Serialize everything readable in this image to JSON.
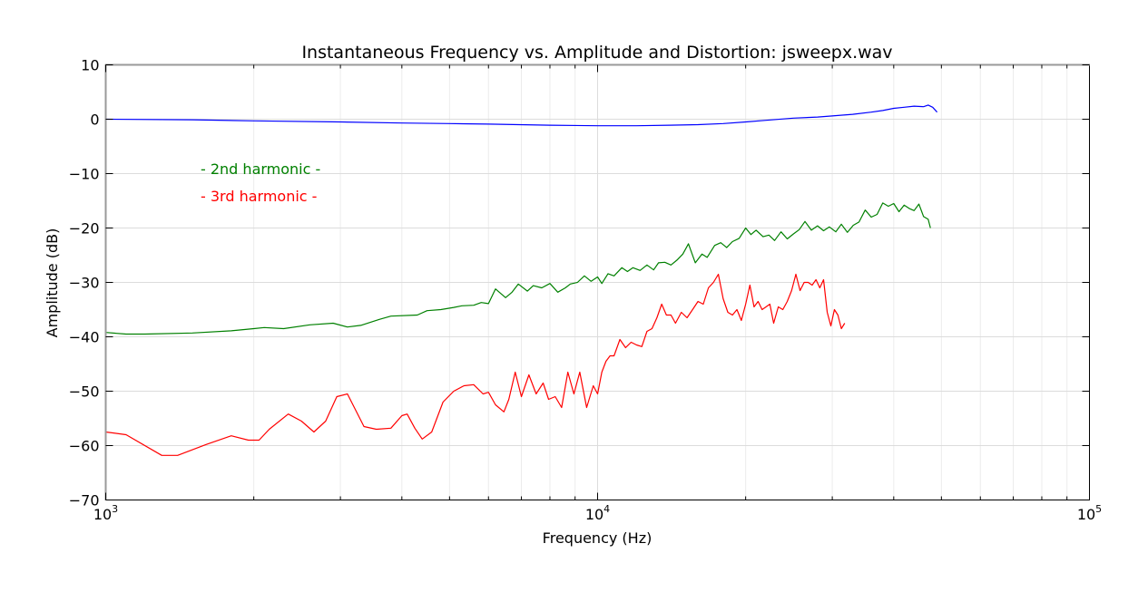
{
  "chart_data": {
    "type": "line",
    "title": "Instantaneous Frequency vs. Amplitude and Distortion: jsweepx.wav",
    "xlabel": "Frequency (Hz)",
    "ylabel": "Amplitude (dB)",
    "xscale": "log",
    "xlim": [
      1000,
      100000
    ],
    "ylim": [
      -70,
      10
    ],
    "grid": true,
    "x_ticks": [
      {
        "base": "10",
        "exp": "3",
        "value": 1000
      },
      {
        "base": "10",
        "exp": "4",
        "value": 10000
      },
      {
        "base": "10",
        "exp": "5",
        "value": 100000
      }
    ],
    "y_ticks": [
      {
        "label": "10",
        "value": 10
      },
      {
        "label": "0",
        "value": 0
      },
      {
        "label": "−10",
        "value": -10
      },
      {
        "label": "−20",
        "value": -20
      },
      {
        "label": "−30",
        "value": -30
      },
      {
        "label": "−40",
        "value": -40
      },
      {
        "label": "−50",
        "value": -50
      },
      {
        "label": "−60",
        "value": -60
      },
      {
        "label": "−70",
        "value": -70
      }
    ],
    "annotations": [
      {
        "text": "- 2nd harmonic -",
        "color": "#008000"
      },
      {
        "text": "- 3rd harmonic -",
        "color": "#ff0000"
      }
    ],
    "series": [
      {
        "color": "#0000ff",
        "x": [
          1000,
          1500,
          2000,
          3000,
          4000,
          5000,
          6000,
          8000,
          10000,
          12000,
          14000,
          16000,
          18000,
          20000,
          22000,
          25000,
          28000,
          30000,
          33000,
          36000,
          38000,
          40000,
          42000,
          44000,
          46000,
          47000,
          48000,
          49000
        ],
        "y": [
          0,
          -0.1,
          -0.3,
          -0.5,
          -0.7,
          -0.8,
          -0.9,
          -1.1,
          -1.2,
          -1.2,
          -1.1,
          -1.0,
          -0.8,
          -0.5,
          -0.2,
          0.2,
          0.4,
          0.6,
          0.9,
          1.3,
          1.6,
          2.0,
          2.2,
          2.4,
          2.3,
          2.6,
          2.2,
          1.3
        ]
      },
      {
        "color": "#008000",
        "x": [
          1000,
          1100,
          1200,
          1500,
          1800,
          2000,
          2100,
          2300,
          2600,
          2900,
          3100,
          3300,
          3600,
          3800,
          4300,
          4500,
          4800,
          5100,
          5300,
          5600,
          5800,
          6000,
          6200,
          6500,
          6700,
          6900,
          7200,
          7400,
          7700,
          8000,
          8300,
          8600,
          8800,
          9100,
          9400,
          9700,
          10000,
          10200,
          10500,
          10800,
          11200,
          11500,
          11800,
          12200,
          12600,
          13000,
          13300,
          13700,
          14100,
          14500,
          14900,
          15300,
          15800,
          16300,
          16700,
          17300,
          17800,
          18300,
          18800,
          19400,
          20000,
          20500,
          21000,
          21700,
          22300,
          22900,
          23600,
          24300,
          25000,
          25700,
          26400,
          27200,
          28000,
          28800,
          29600,
          30500,
          31300,
          32200,
          33100,
          34000,
          35000,
          36000,
          37000,
          38000,
          39000,
          40000,
          41000,
          42000,
          43000,
          44000,
          45000,
          46000,
          47000,
          47500
        ],
        "y": [
          -39.2,
          -39.5,
          -39.5,
          -39.3,
          -38.9,
          -38.5,
          -38.3,
          -38.5,
          -37.8,
          -37.5,
          -38.2,
          -37.9,
          -36.8,
          -36.2,
          -36.0,
          -35.2,
          -35.0,
          -34.6,
          -34.3,
          -34.2,
          -33.7,
          -33.9,
          -31.2,
          -32.8,
          -31.8,
          -30.3,
          -31.6,
          -30.6,
          -31.0,
          -30.2,
          -31.8,
          -31.0,
          -30.3,
          -30.0,
          -28.8,
          -29.8,
          -29.0,
          -30.2,
          -28.4,
          -28.8,
          -27.3,
          -28.0,
          -27.3,
          -27.8,
          -26.8,
          -27.7,
          -26.4,
          -26.3,
          -26.8,
          -25.9,
          -24.8,
          -22.9,
          -26.4,
          -24.8,
          -25.4,
          -23.2,
          -22.7,
          -23.6,
          -22.5,
          -21.9,
          -20.0,
          -21.2,
          -20.4,
          -21.6,
          -21.3,
          -22.3,
          -20.7,
          -22.0,
          -21.1,
          -20.3,
          -18.8,
          -20.4,
          -19.6,
          -20.5,
          -19.8,
          -20.7,
          -19.3,
          -20.8,
          -19.5,
          -18.9,
          -16.7,
          -18.0,
          -17.5,
          -15.4,
          -16.0,
          -15.5,
          -17.0,
          -15.8,
          -16.4,
          -16.8,
          -15.6,
          -17.9,
          -18.4,
          -20.0
        ]
      },
      {
        "color": "#ff0000",
        "x": [
          1000,
          1100,
          1300,
          1400,
          1600,
          1800,
          1950,
          2050,
          2150,
          2350,
          2500,
          2650,
          2800,
          2950,
          3100,
          3350,
          3550,
          3800,
          4000,
          4100,
          4250,
          4400,
          4600,
          4850,
          5100,
          5350,
          5600,
          5850,
          6000,
          6200,
          6450,
          6600,
          6800,
          7000,
          7250,
          7500,
          7750,
          7950,
          8200,
          8450,
          8700,
          8950,
          9200,
          9500,
          9800,
          10000,
          10200,
          10400,
          10600,
          10800,
          11100,
          11400,
          11700,
          12000,
          12300,
          12600,
          12900,
          13200,
          13500,
          13800,
          14100,
          14400,
          14800,
          15200,
          15600,
          16000,
          16400,
          16800,
          17200,
          17600,
          18000,
          18400,
          18800,
          19200,
          19600,
          20000,
          20400,
          20800,
          21200,
          21600,
          22000,
          22400,
          22800,
          23300,
          23800,
          24300,
          24800,
          25300,
          25800,
          26300,
          26800,
          27300,
          27800,
          28300,
          28800,
          29300,
          29800,
          30300,
          30800,
          31300,
          31800
        ],
        "y": [
          -57.5,
          -58.0,
          -61.8,
          -61.8,
          -59.8,
          -58.2,
          -59.0,
          -59.0,
          -57.0,
          -54.2,
          -55.5,
          -57.5,
          -55.5,
          -51.0,
          -50.5,
          -56.5,
          -57.0,
          -56.8,
          -54.5,
          -54.2,
          -56.8,
          -58.8,
          -57.5,
          -52.0,
          -50.0,
          -49.0,
          -48.8,
          -50.5,
          -50.2,
          -52.5,
          -53.8,
          -51.5,
          -46.5,
          -51.0,
          -47.0,
          -50.5,
          -48.5,
          -51.5,
          -51.0,
          -53.0,
          -46.5,
          -50.5,
          -46.5,
          -53.0,
          -49.0,
          -50.5,
          -46.5,
          -44.5,
          -43.5,
          -43.5,
          -40.5,
          -42.0,
          -41.0,
          -41.5,
          -41.8,
          -39.0,
          -38.5,
          -36.5,
          -34.0,
          -36.0,
          -36.0,
          -37.5,
          -35.5,
          -36.5,
          -35.0,
          -33.5,
          -34.0,
          -31.0,
          -30.0,
          -28.5,
          -33.0,
          -35.5,
          -36.0,
          -35.0,
          -37.0,
          -34.0,
          -30.5,
          -34.5,
          -33.5,
          -35.0,
          -34.5,
          -34.0,
          -37.5,
          -34.5,
          -35.0,
          -33.5,
          -31.5,
          -28.5,
          -31.5,
          -30.0,
          -30.0,
          -30.5,
          -29.5,
          -31.0,
          -29.5,
          -35.5,
          -38.0,
          -35.0,
          -36.0,
          -38.5,
          -37.5
        ]
      }
    ]
  }
}
